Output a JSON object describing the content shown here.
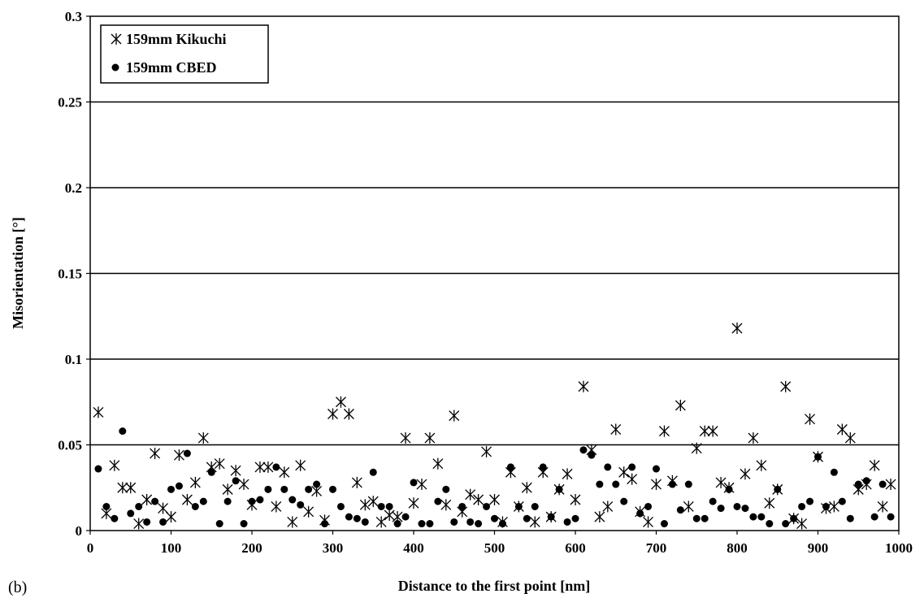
{
  "chart_data": {
    "type": "scatter",
    "panel_label": "(b)",
    "xlabel": "Distance to the first point [nm]",
    "ylabel": "Misorientation [°]",
    "xlim": [
      0,
      1000
    ],
    "ylim": [
      0,
      0.3
    ],
    "x_ticks": [
      "0",
      "100",
      "200",
      "300",
      "400",
      "500",
      "600",
      "700",
      "800",
      "900",
      "1000"
    ],
    "y_ticks": [
      "0",
      "0.05",
      "0.1",
      "0.15",
      "0.2",
      "0.25",
      "0.3"
    ],
    "grid": "horizontal",
    "legend_position": "top-left",
    "colors": {
      "marker": "#000000",
      "gridline": "#000000"
    },
    "series": [
      {
        "name": "159mm Kikuchi",
        "marker": "asterisk",
        "x": [
          10,
          20,
          30,
          40,
          50,
          60,
          70,
          80,
          90,
          100,
          110,
          120,
          130,
          140,
          150,
          160,
          170,
          180,
          190,
          200,
          210,
          220,
          230,
          240,
          250,
          260,
          270,
          280,
          290,
          300,
          310,
          320,
          330,
          340,
          350,
          360,
          370,
          380,
          390,
          400,
          410,
          420,
          430,
          440,
          450,
          460,
          470,
          480,
          490,
          500,
          510,
          520,
          530,
          540,
          550,
          560,
          570,
          580,
          590,
          600,
          610,
          620,
          630,
          640,
          650,
          660,
          670,
          680,
          690,
          700,
          710,
          720,
          730,
          740,
          750,
          760,
          770,
          780,
          790,
          800,
          810,
          820,
          830,
          840,
          850,
          860,
          870,
          880,
          890,
          900,
          910,
          920,
          930,
          940,
          950,
          960,
          970,
          980,
          990
        ],
        "y": [
          0.069,
          0.01,
          0.038,
          0.025,
          0.025,
          0.004,
          0.018,
          0.045,
          0.013,
          0.008,
          0.044,
          0.018,
          0.028,
          0.054,
          0.037,
          0.039,
          0.024,
          0.035,
          0.027,
          0.015,
          0.037,
          0.037,
          0.014,
          0.034,
          0.005,
          0.038,
          0.011,
          0.023,
          0.006,
          0.068,
          0.075,
          0.068,
          0.028,
          0.015,
          0.017,
          0.005,
          0.009,
          0.008,
          0.054,
          0.016,
          0.027,
          0.054,
          0.039,
          0.015,
          0.067,
          0.011,
          0.021,
          0.018,
          0.046,
          0.018,
          0.005,
          0.034,
          0.014,
          0.025,
          0.005,
          0.034,
          0.008,
          0.024,
          0.033,
          0.018,
          0.084,
          0.047,
          0.008,
          0.014,
          0.059,
          0.034,
          0.03,
          0.011,
          0.005,
          0.027,
          0.058,
          0.029,
          0.073,
          0.014,
          0.048,
          0.058,
          0.058,
          0.028,
          0.025,
          0.118,
          0.033,
          0.054,
          0.038,
          0.016,
          0.024,
          0.084,
          0.007,
          0.004,
          0.065,
          0.043,
          0.013,
          0.014,
          0.059,
          0.054,
          0.024,
          0.027,
          0.038,
          0.014,
          0.027
        ]
      },
      {
        "name": "159mm CBED",
        "marker": "dot",
        "x": [
          10,
          20,
          30,
          40,
          50,
          60,
          70,
          80,
          90,
          100,
          110,
          120,
          130,
          140,
          150,
          160,
          170,
          180,
          190,
          200,
          210,
          220,
          230,
          240,
          250,
          260,
          270,
          280,
          290,
          300,
          310,
          320,
          330,
          340,
          350,
          360,
          370,
          380,
          390,
          400,
          410,
          420,
          430,
          440,
          450,
          460,
          470,
          480,
          490,
          500,
          510,
          520,
          530,
          540,
          550,
          560,
          570,
          580,
          590,
          600,
          610,
          620,
          630,
          640,
          650,
          660,
          670,
          680,
          690,
          700,
          710,
          720,
          730,
          740,
          750,
          760,
          770,
          780,
          790,
          800,
          810,
          820,
          830,
          840,
          850,
          860,
          870,
          880,
          890,
          900,
          910,
          920,
          930,
          940,
          950,
          960,
          970,
          980,
          990
        ],
        "y": [
          0.036,
          0.014,
          0.007,
          0.058,
          0.01,
          0.014,
          0.005,
          0.017,
          0.005,
          0.024,
          0.026,
          0.045,
          0.014,
          0.017,
          0.034,
          0.004,
          0.017,
          0.029,
          0.004,
          0.017,
          0.018,
          0.024,
          0.037,
          0.024,
          0.018,
          0.015,
          0.024,
          0.027,
          0.004,
          0.024,
          0.014,
          0.008,
          0.007,
          0.005,
          0.034,
          0.014,
          0.014,
          0.004,
          0.008,
          0.028,
          0.004,
          0.004,
          0.017,
          0.024,
          0.005,
          0.014,
          0.005,
          0.004,
          0.014,
          0.007,
          0.004,
          0.037,
          0.014,
          0.007,
          0.014,
          0.037,
          0.008,
          0.024,
          0.005,
          0.007,
          0.047,
          0.044,
          0.027,
          0.037,
          0.027,
          0.017,
          0.037,
          0.01,
          0.014,
          0.036,
          0.004,
          0.027,
          0.012,
          0.027,
          0.007,
          0.007,
          0.017,
          0.013,
          0.024,
          0.014,
          0.013,
          0.008,
          0.008,
          0.004,
          0.024,
          0.004,
          0.007,
          0.014,
          0.017,
          0.043,
          0.014,
          0.034,
          0.017,
          0.007,
          0.027,
          0.029,
          0.008,
          0.027,
          0.008
        ]
      }
    ]
  }
}
